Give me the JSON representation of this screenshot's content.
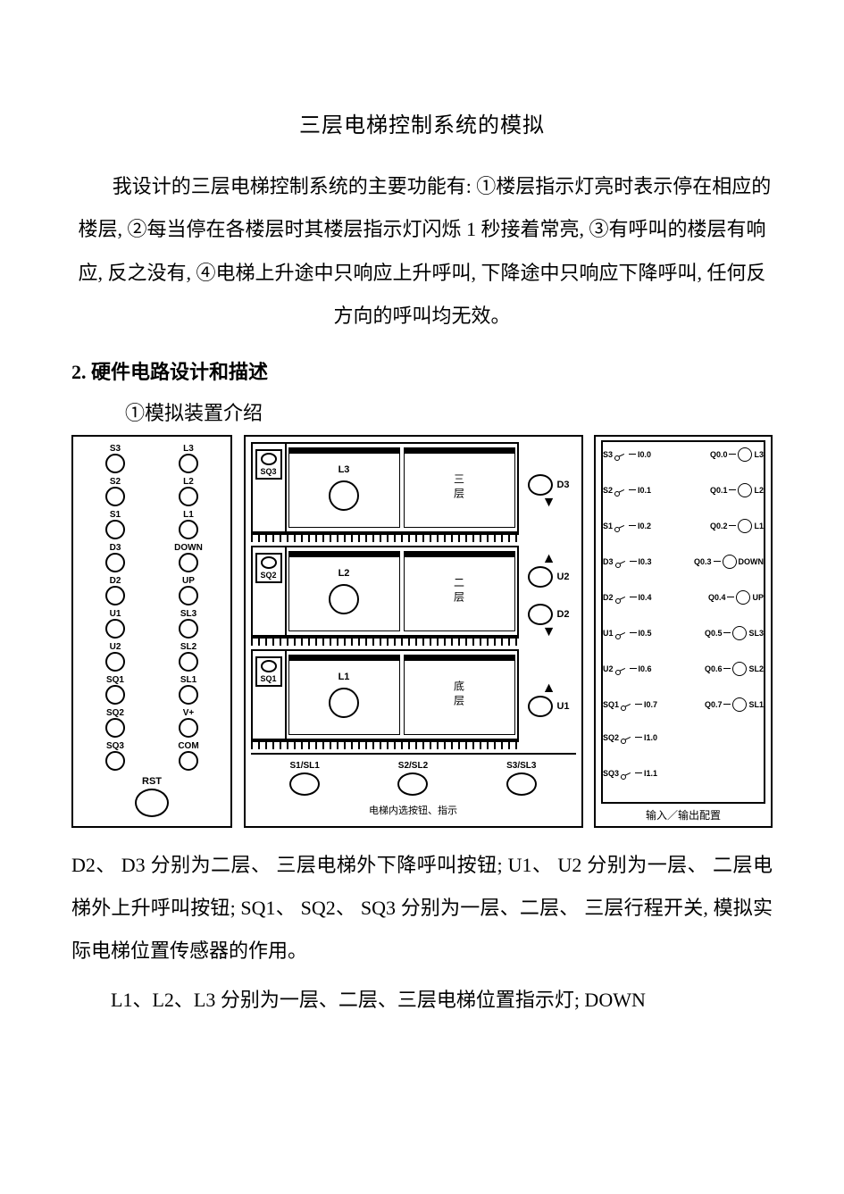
{
  "title": "三层电梯控制系统的模拟",
  "intro": "我设计的三层电梯控制系统的主要功能有: ①楼层指示灯亮时表示停在相应的楼层, ②每当停在各楼层时其楼层指示灯闪烁 1 秒接着常亮, ③有呼叫的楼层有响应, 反之没有, ④电梯上升途中只响应上升呼叫, 下降途中只响应下降呼叫, 任何反方向的呼叫均无效。",
  "section2_head": "2. 硬件电路设计和描述",
  "section2_sub": "①模拟装置介绍",
  "panelA": {
    "rows": [
      [
        "S3",
        "L3"
      ],
      [
        "S2",
        "L2"
      ],
      [
        "S1",
        "L1"
      ],
      [
        "D3",
        "DOWN"
      ],
      [
        "D2",
        "UP"
      ],
      [
        "U1",
        "SL3"
      ],
      [
        "U2",
        "SL2"
      ],
      [
        "SQ1",
        "SL1"
      ],
      [
        "SQ2",
        "V+"
      ],
      [
        "SQ3",
        "COM"
      ]
    ],
    "rst": "RST"
  },
  "panelB": {
    "floors": [
      {
        "sq": "SQ3",
        "lamp": "L3",
        "name": "三层",
        "calls": [
          {
            "lbl": "D3",
            "arrow": "down"
          }
        ]
      },
      {
        "sq": "SQ2",
        "lamp": "L2",
        "name": "二层",
        "calls": [
          {
            "lbl": "U2",
            "arrow": "up"
          },
          {
            "lbl": "D2",
            "arrow": "down"
          }
        ]
      },
      {
        "sq": "SQ1",
        "lamp": "L1",
        "name": "底层",
        "calls": [
          {
            "lbl": "U1",
            "arrow": "up"
          }
        ]
      }
    ],
    "selects": [
      "S1/SL1",
      "S2/SL2",
      "S3/SL3"
    ],
    "caption": "电梯内选按钮、指示"
  },
  "panelC": {
    "caption": "输入／输出配置",
    "inputs": [
      {
        "lbl": "S3",
        "port": "I0.0"
      },
      {
        "lbl": "S2",
        "port": "I0.1"
      },
      {
        "lbl": "S1",
        "port": "I0.2"
      },
      {
        "lbl": "D3",
        "port": "I0.3"
      },
      {
        "lbl": "D2",
        "port": "I0.4"
      },
      {
        "lbl": "U1",
        "port": "I0.5"
      },
      {
        "lbl": "U2",
        "port": "I0.6"
      },
      {
        "lbl": "SQ1",
        "port": "I0.7"
      },
      {
        "lbl": "SQ2",
        "port": "I1.0"
      },
      {
        "lbl": "SQ3",
        "port": "I1.1"
      }
    ],
    "outputs": [
      {
        "port": "Q0.0",
        "lbl": "L3"
      },
      {
        "port": "Q0.1",
        "lbl": "L2"
      },
      {
        "port": "Q0.2",
        "lbl": "L1"
      },
      {
        "port": "Q0.3",
        "lbl": "DOWN"
      },
      {
        "port": "Q0.4",
        "lbl": "UP"
      },
      {
        "port": "Q0.5",
        "lbl": "SL3"
      },
      {
        "port": "Q0.6",
        "lbl": "SL2"
      },
      {
        "port": "Q0.7",
        "lbl": "SL1"
      }
    ]
  },
  "after1": "D2、 D3 分别为二层、 三层电梯外下降呼叫按钮; U1、 U2 分别为一层、 二层电梯外上升呼叫按钮; SQ1、 SQ2、 SQ3 分别为一层、二层、 三层行程开关, 模拟实际电梯位置传感器的作用。",
  "after2": "L1、L2、L3 分别为一层、二层、三层电梯位置指示灯; DOWN"
}
